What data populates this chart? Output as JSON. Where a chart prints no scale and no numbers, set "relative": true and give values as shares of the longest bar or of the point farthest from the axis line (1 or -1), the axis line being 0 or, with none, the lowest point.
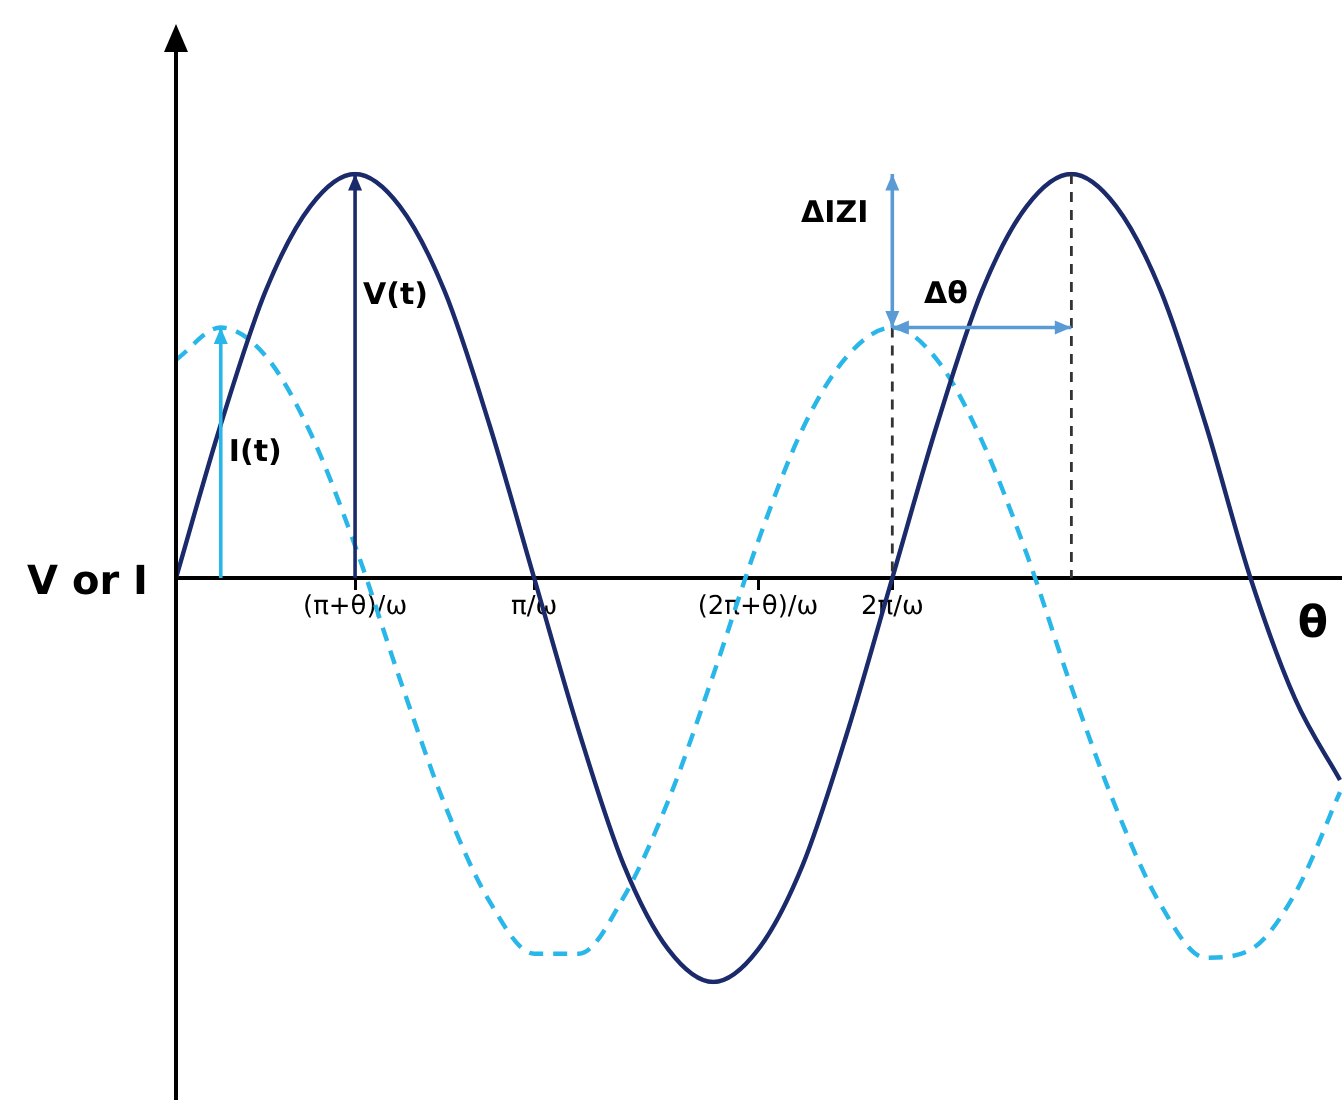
{
  "chart_data": {
    "type": "line",
    "relative": true,
    "xlabel": "θ",
    "ylabel": "V or I",
    "categories": [
      null,
      null,
      null,
      null,
      "(π+θ)/ω",
      null,
      null,
      null,
      "π/ω",
      null,
      null,
      null,
      null,
      "(2π+θ)/ω",
      null,
      null,
      "2π/ω",
      null,
      null,
      null,
      null,
      null,
      null,
      null,
      null,
      null,
      null
    ],
    "series": [
      {
        "color": "#1b2a6b",
        "line_style": "solid",
        "values": [
          0,
          0.38,
          0.71,
          0.92,
          1,
          0.92,
          0.71,
          0.38,
          0,
          -0.38,
          -0.71,
          -0.92,
          -1,
          -0.92,
          -0.71,
          -0.38,
          0,
          0.38,
          0.71,
          0.92,
          1,
          0.92,
          0.71,
          0.38,
          0,
          -0.3,
          -0.5
        ]
      },
      {
        "color": "#29b6e8",
        "line_style": "dashed",
        "values": [
          0.54,
          0.62,
          0.55,
          0.36,
          0.08,
          -0.25,
          -0.56,
          -0.8,
          -0.93,
          -0.93,
          -0.79,
          -0.55,
          -0.24,
          0.09,
          0.37,
          0.55,
          0.62,
          0.54,
          0.34,
          0.06,
          -0.27,
          -0.57,
          -0.81,
          -0.94,
          -0.92,
          -0.78,
          -0.53
        ]
      }
    ],
    "annotations": [
      "V(t)",
      "I(t)",
      "ΔIZI",
      "Δθ"
    ],
    "marker": "none",
    "grid": false,
    "tick_labels": "x"
  }
}
